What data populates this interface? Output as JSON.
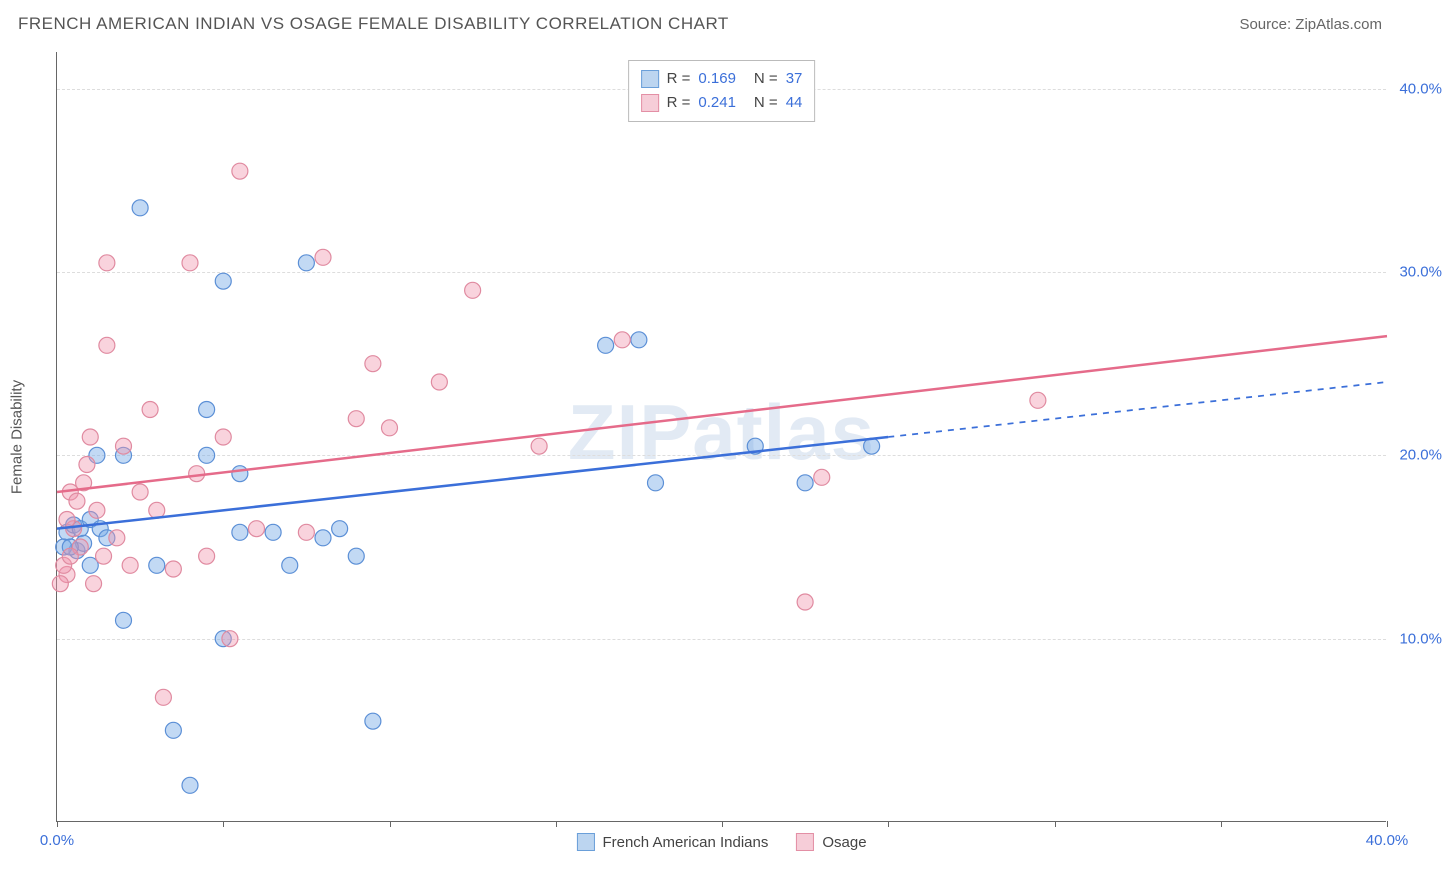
{
  "header": {
    "title": "FRENCH AMERICAN INDIAN VS OSAGE FEMALE DISABILITY CORRELATION CHART",
    "source": "Source: ZipAtlas.com"
  },
  "chart": {
    "type": "scatter",
    "watermark": "ZIPatlas",
    "y_axis_label": "Female Disability",
    "background_color": "#ffffff",
    "grid_color": "#dddddd",
    "axis_color": "#666666",
    "xlim": [
      0,
      40
    ],
    "ylim": [
      0,
      42
    ],
    "y_ticks": [
      10,
      20,
      30,
      40
    ],
    "y_tick_labels": [
      "10.0%",
      "20.0%",
      "30.0%",
      "40.0%"
    ],
    "x_ticks": [
      0,
      5,
      10,
      15,
      20,
      25,
      30,
      35,
      40
    ],
    "x_tick_labels_shown": {
      "0": "0.0%",
      "40": "40.0%"
    },
    "marker_radius": 8,
    "marker_opacity": 0.55,
    "series": [
      {
        "name": "French American Indians",
        "color_fill": "rgba(120,170,230,0.45)",
        "color_stroke": "#5b8fd6",
        "swatch_fill": "#bcd5f0",
        "swatch_border": "#6a9fd9",
        "R": "0.169",
        "N": "37",
        "trend": {
          "x1": 0,
          "y1": 16.0,
          "x2": 25,
          "y2": 21.0,
          "x2_dash": 40,
          "y2_dash": 24.0,
          "color": "#3b6fd9",
          "width": 2.5
        },
        "points": [
          [
            0.3,
            15.8
          ],
          [
            0.5,
            16.2
          ],
          [
            0.6,
            14.8
          ],
          [
            0.7,
            16.0
          ],
          [
            0.8,
            15.2
          ],
          [
            1.0,
            16.5
          ],
          [
            1.0,
            14.0
          ],
          [
            1.2,
            20.0
          ],
          [
            1.3,
            16.0
          ],
          [
            1.5,
            15.5
          ],
          [
            2.0,
            20.0
          ],
          [
            2.0,
            11.0
          ],
          [
            2.5,
            33.5
          ],
          [
            3.0,
            14.0
          ],
          [
            3.5,
            5.0
          ],
          [
            4.0,
            2.0
          ],
          [
            4.5,
            22.5
          ],
          [
            4.5,
            20.0
          ],
          [
            5.0,
            10.0
          ],
          [
            5.0,
            29.5
          ],
          [
            5.5,
            15.8
          ],
          [
            5.5,
            19.0
          ],
          [
            6.5,
            15.8
          ],
          [
            7.0,
            14.0
          ],
          [
            7.5,
            30.5
          ],
          [
            8.0,
            15.5
          ],
          [
            8.5,
            16.0
          ],
          [
            9.0,
            14.5
          ],
          [
            9.5,
            5.5
          ],
          [
            16.5,
            26.0
          ],
          [
            17.5,
            26.3
          ],
          [
            18.0,
            18.5
          ],
          [
            21.0,
            20.5
          ],
          [
            22.5,
            18.5
          ],
          [
            24.5,
            20.5
          ],
          [
            0.2,
            15.0
          ],
          [
            0.4,
            15.0
          ]
        ]
      },
      {
        "name": "Osage",
        "color_fill": "rgba(240,150,175,0.42)",
        "color_stroke": "#e08aa0",
        "swatch_fill": "#f6cdd8",
        "swatch_border": "#e38fa5",
        "R": "0.241",
        "N": "44",
        "trend": {
          "x1": 0,
          "y1": 18.0,
          "x2": 40,
          "y2": 26.5,
          "color": "#e56b8a",
          "width": 2.5
        },
        "points": [
          [
            0.3,
            13.5
          ],
          [
            0.4,
            18.0
          ],
          [
            0.5,
            16.0
          ],
          [
            0.6,
            17.5
          ],
          [
            0.7,
            15.0
          ],
          [
            0.8,
            18.5
          ],
          [
            1.0,
            21.0
          ],
          [
            1.2,
            17.0
          ],
          [
            1.5,
            30.5
          ],
          [
            1.5,
            26.0
          ],
          [
            1.8,
            15.5
          ],
          [
            2.0,
            20.5
          ],
          [
            2.2,
            14.0
          ],
          [
            2.5,
            18.0
          ],
          [
            2.8,
            22.5
          ],
          [
            3.0,
            17.0
          ],
          [
            3.2,
            6.8
          ],
          [
            3.5,
            13.8
          ],
          [
            4.0,
            30.5
          ],
          [
            4.2,
            19.0
          ],
          [
            4.5,
            14.5
          ],
          [
            5.0,
            21.0
          ],
          [
            5.2,
            10.0
          ],
          [
            5.5,
            35.5
          ],
          [
            6.0,
            16.0
          ],
          [
            7.5,
            15.8
          ],
          [
            8.0,
            30.8
          ],
          [
            9.0,
            22.0
          ],
          [
            9.5,
            25.0
          ],
          [
            10.0,
            21.5
          ],
          [
            11.5,
            24.0
          ],
          [
            12.5,
            29.0
          ],
          [
            14.5,
            20.5
          ],
          [
            17.0,
            26.3
          ],
          [
            22.5,
            12.0
          ],
          [
            23.0,
            18.8
          ],
          [
            29.5,
            23.0
          ],
          [
            0.2,
            14.0
          ],
          [
            0.3,
            16.5
          ],
          [
            0.4,
            14.5
          ],
          [
            0.9,
            19.5
          ],
          [
            1.1,
            13.0
          ],
          [
            1.4,
            14.5
          ],
          [
            0.1,
            13.0
          ]
        ]
      }
    ],
    "legend_top": {
      "rows": [
        {
          "series_idx": 0,
          "r_label": "R =",
          "n_label": "N ="
        },
        {
          "series_idx": 1,
          "r_label": "R =",
          "n_label": "N ="
        }
      ]
    }
  }
}
